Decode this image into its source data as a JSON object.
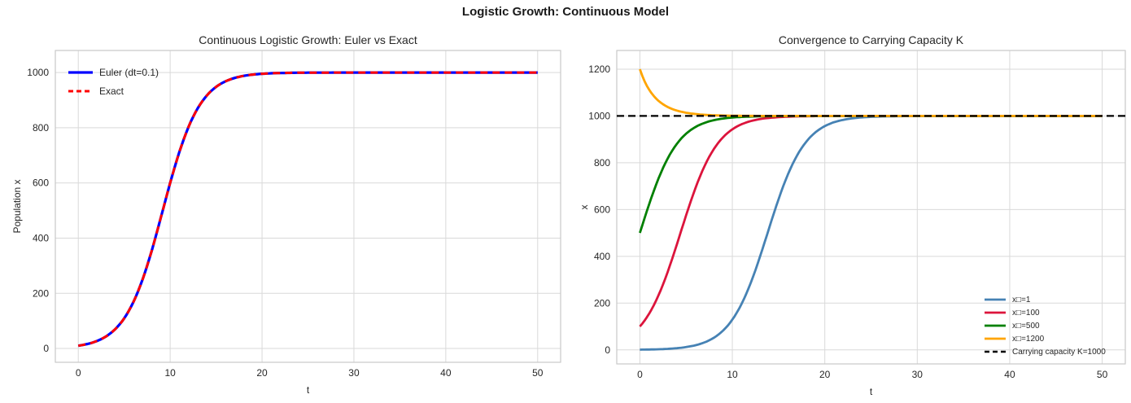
{
  "figure": {
    "suptitle": "Logistic Growth: Continuous Model",
    "background": "#ffffff",
    "text_color": "#262626",
    "grid_color": "#d9d9d9",
    "frame_color": "#c9c9c9"
  },
  "chart_data": [
    {
      "type": "line",
      "title": "Continuous Logistic Growth: Euler vs Exact",
      "xlabel": "t",
      "ylabel": "Population x",
      "xlim": [
        -2.5,
        52.5
      ],
      "ylim": [
        -50,
        1080
      ],
      "xticks": [
        0,
        10,
        20,
        30,
        40,
        50
      ],
      "yticks": [
        0,
        200,
        400,
        600,
        800,
        1000
      ],
      "grid": true,
      "legend_position": "upper-left",
      "model": {
        "type": "logistic",
        "K": 1000,
        "r": 0.5,
        "t_min": 0,
        "t_max": 50,
        "step": 0.25
      },
      "series": [
        {
          "name": "Euler (dt=0.1)",
          "color": "#0000ff",
          "width": 3.2,
          "dash": null,
          "x0": 10
        },
        {
          "name": "Exact",
          "color": "#ff0000",
          "width": 3,
          "dash": "9,6",
          "x0": 10
        }
      ]
    },
    {
      "type": "line",
      "title": "Convergence to Carrying Capacity K",
      "xlabel": "t",
      "ylabel": "x",
      "xlim": [
        -2.5,
        52.5
      ],
      "ylim": [
        -60,
        1280
      ],
      "xticks": [
        0,
        10,
        20,
        30,
        40,
        50
      ],
      "yticks": [
        0,
        200,
        400,
        600,
        800,
        1000,
        1200
      ],
      "grid": true,
      "legend_position": "lower-right",
      "model": {
        "type": "logistic",
        "K": 1000,
        "r": 0.5,
        "t_min": 0,
        "t_max": 50,
        "step": 0.25
      },
      "series": [
        {
          "name": "x□=1",
          "color": "#4682b4",
          "width": 2.8,
          "dash": null,
          "x0": 1
        },
        {
          "name": "x□=100",
          "color": "#dc143c",
          "width": 2.8,
          "dash": null,
          "x0": 100
        },
        {
          "name": "x□=500",
          "color": "#008000",
          "width": 2.8,
          "dash": null,
          "x0": 500
        },
        {
          "name": "x□=1200",
          "color": "#ffa500",
          "width": 2.8,
          "dash": null,
          "x0": 1200
        },
        {
          "name": "Carrying capacity K=1000",
          "color": "#000000",
          "width": 2.2,
          "dash": "9,5",
          "hline": 1000
        }
      ]
    }
  ]
}
